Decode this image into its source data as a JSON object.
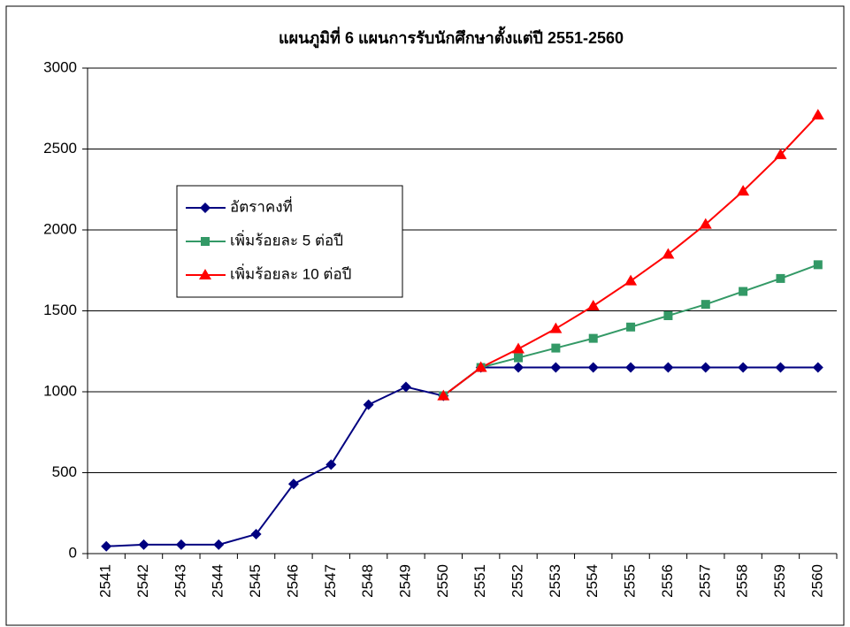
{
  "chart_data": {
    "type": "line",
    "title": "แผนภูมิที่ 6 แผนการรับนักศึกษาตั้งแต่ปี 2551-2560",
    "categories": [
      "2541",
      "2542",
      "2543",
      "2544",
      "2545",
      "2546",
      "2547",
      "2548",
      "2549",
      "2550",
      "2551",
      "2552",
      "2553",
      "2554",
      "2555",
      "2556",
      "2557",
      "2558",
      "2559",
      "2560"
    ],
    "series": [
      {
        "name": "อัตราคงที่",
        "color": "#000080",
        "marker": "diamond",
        "values": [
          45,
          55,
          55,
          55,
          120,
          430,
          550,
          920,
          1030,
          975,
          1150,
          1150,
          1150,
          1150,
          1150,
          1150,
          1150,
          1150,
          1150,
          1150
        ]
      },
      {
        "name": "เพิ่มร้อยละ 5 ต่อปี",
        "color": "#339966",
        "marker": "square",
        "values": [
          null,
          null,
          null,
          null,
          null,
          null,
          null,
          null,
          null,
          975,
          1150,
          1210,
          1270,
          1330,
          1400,
          1470,
          1540,
          1620,
          1700,
          1785
        ]
      },
      {
        "name": "เพิ่มร้อยละ 10 ต่อปี",
        "color": "#ff0000",
        "marker": "triangle",
        "values": [
          null,
          null,
          null,
          null,
          null,
          null,
          null,
          null,
          null,
          975,
          1150,
          1265,
          1390,
          1530,
          1685,
          1850,
          2035,
          2240,
          2465,
          2710
        ]
      }
    ],
    "ylim": [
      0,
      3000
    ],
    "yticks": [
      0,
      500,
      1000,
      1500,
      2000,
      2500,
      3000
    ],
    "grid": true,
    "legend": "left"
  }
}
